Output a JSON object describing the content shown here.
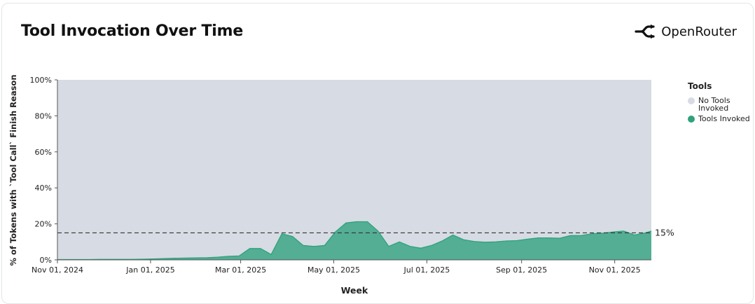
{
  "header": {
    "title": "Tool Invocation Over Time",
    "brand_name": "OpenRouter"
  },
  "legend": {
    "title": "Tools",
    "items": [
      {
        "label": "No Tools Invoked",
        "color": "#d7dbe3"
      },
      {
        "label": "Tools Invoked",
        "color": "#2ea27d"
      }
    ]
  },
  "chart_data": {
    "type": "area",
    "title": "Tool Invocation Over Time",
    "xlabel": "Week",
    "ylabel": "% of Tokens with `Tool Call` Finish Reason",
    "ylim": [
      0,
      100
    ],
    "y_ticks": [
      "0%",
      "20%",
      "40%",
      "60%",
      "80%",
      "100%"
    ],
    "y_tick_values": [
      0,
      20,
      40,
      60,
      80,
      100
    ],
    "x_tick_labels": [
      "Nov 01, 2024",
      "Jan 01, 2025",
      "Mar 01, 2025",
      "May 01, 2025",
      "Jul 01, 2025",
      "Sep 01, 2025",
      "Nov 01, 2025"
    ],
    "x_tick_dates": [
      "2024-11-01",
      "2025-01-01",
      "2025-03-01",
      "2025-05-01",
      "2025-07-01",
      "2025-09-01",
      "2025-11-01"
    ],
    "x_range": [
      "2024-11-01",
      "2025-11-25"
    ],
    "stacked": true,
    "series": [
      {
        "name": "Tools Invoked",
        "color": "#2ea27d",
        "x": [
          "2024-11-01",
          "2024-11-08",
          "2024-11-15",
          "2024-11-22",
          "2024-11-29",
          "2024-12-06",
          "2024-12-13",
          "2024-12-20",
          "2024-12-27",
          "2025-01-03",
          "2025-01-10",
          "2025-01-17",
          "2025-01-24",
          "2025-01-31",
          "2025-02-07",
          "2025-02-14",
          "2025-02-21",
          "2025-02-28",
          "2025-03-07",
          "2025-03-14",
          "2025-03-21",
          "2025-03-28",
          "2025-04-04",
          "2025-04-11",
          "2025-04-18",
          "2025-04-25",
          "2025-05-02",
          "2025-05-09",
          "2025-05-16",
          "2025-05-23",
          "2025-05-30",
          "2025-06-06",
          "2025-06-13",
          "2025-06-20",
          "2025-06-27",
          "2025-07-04",
          "2025-07-11",
          "2025-07-18",
          "2025-07-25",
          "2025-08-01",
          "2025-08-08",
          "2025-08-15",
          "2025-08-22",
          "2025-08-29",
          "2025-09-05",
          "2025-09-12",
          "2025-09-19",
          "2025-09-26",
          "2025-10-03",
          "2025-10-10",
          "2025-10-17",
          "2025-10-24",
          "2025-10-31",
          "2025-11-07",
          "2025-11-14",
          "2025-11-21",
          "2025-11-25"
        ],
        "values": [
          0.2,
          0.2,
          0.2,
          0.2,
          0.3,
          0.3,
          0.3,
          0.3,
          0.4,
          0.5,
          0.7,
          0.9,
          1.0,
          1.1,
          1.2,
          1.5,
          2.0,
          2.2,
          6.3,
          6.3,
          3.0,
          14.5,
          13.0,
          8.0,
          7.5,
          8.0,
          15.5,
          20.5,
          21.2,
          21.2,
          16.0,
          7.5,
          10.0,
          7.5,
          6.5,
          8.0,
          10.5,
          13.8,
          11.2,
          10.2,
          9.8,
          10.0,
          10.5,
          10.7,
          11.5,
          12.2,
          12.2,
          12.0,
          13.5,
          13.5,
          14.5,
          14.8,
          15.5,
          16.0,
          13.8,
          15.0,
          16.0
        ]
      },
      {
        "name": "No Tools Invoked",
        "color": "#d7dbe3",
        "note_fill": "remainder to 100%"
      }
    ],
    "reference_line": {
      "value": 15,
      "label": "15%",
      "style": "dashed"
    }
  }
}
